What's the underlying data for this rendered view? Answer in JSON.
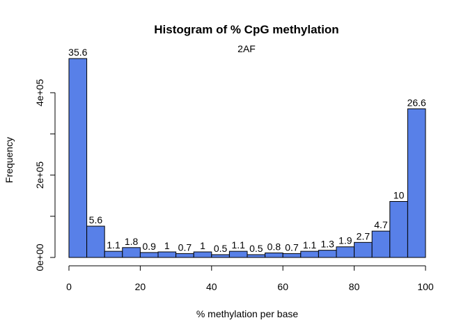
{
  "chart_data": {
    "type": "bar",
    "title": "Histogram of % CpG methylation",
    "subtitle": "2AF",
    "xlabel": "% methylation per base",
    "ylabel": "Frequency",
    "bar_color": "#5880e8",
    "xlim": [
      0,
      100
    ],
    "ylim": [
      0,
      490000
    ],
    "bin_width": 5,
    "bins": [
      {
        "x0": 0,
        "x1": 5,
        "value": 483000,
        "label": "35.6"
      },
      {
        "x0": 5,
        "x1": 10,
        "value": 76000,
        "label": "5.6"
      },
      {
        "x0": 10,
        "x1": 15,
        "value": 15000,
        "label": "1.1"
      },
      {
        "x0": 15,
        "x1": 20,
        "value": 24000,
        "label": "1.8"
      },
      {
        "x0": 20,
        "x1": 25,
        "value": 12000,
        "label": "0.9"
      },
      {
        "x0": 25,
        "x1": 30,
        "value": 13500,
        "label": "1"
      },
      {
        "x0": 30,
        "x1": 35,
        "value": 9500,
        "label": "0.7"
      },
      {
        "x0": 35,
        "x1": 40,
        "value": 13500,
        "label": "1"
      },
      {
        "x0": 40,
        "x1": 45,
        "value": 6800,
        "label": "0.5"
      },
      {
        "x0": 45,
        "x1": 50,
        "value": 15000,
        "label": "1.1"
      },
      {
        "x0": 50,
        "x1": 55,
        "value": 6800,
        "label": "0.5"
      },
      {
        "x0": 55,
        "x1": 60,
        "value": 11000,
        "label": "0.8"
      },
      {
        "x0": 60,
        "x1": 65,
        "value": 9500,
        "label": "0.7"
      },
      {
        "x0": 65,
        "x1": 70,
        "value": 15000,
        "label": "1.1"
      },
      {
        "x0": 70,
        "x1": 75,
        "value": 17500,
        "label": "1.3"
      },
      {
        "x0": 75,
        "x1": 80,
        "value": 25800,
        "label": "1.9"
      },
      {
        "x0": 80,
        "x1": 85,
        "value": 36600,
        "label": "2.7"
      },
      {
        "x0": 85,
        "x1": 90,
        "value": 64000,
        "label": "4.7"
      },
      {
        "x0": 90,
        "x1": 95,
        "value": 136000,
        "label": "10"
      },
      {
        "x0": 95,
        "x1": 100,
        "value": 361000,
        "label": "26.6"
      }
    ],
    "x_ticks": [
      {
        "value": 0,
        "label": "0"
      },
      {
        "value": 20,
        "label": "20"
      },
      {
        "value": 40,
        "label": "40"
      },
      {
        "value": 60,
        "label": "60"
      },
      {
        "value": 80,
        "label": "80"
      },
      {
        "value": 100,
        "label": "100"
      }
    ],
    "y_ticks": [
      {
        "value": 0,
        "label": "0e+00"
      },
      {
        "value": 100000,
        "label": ""
      },
      {
        "value": 200000,
        "label": "2e+05"
      },
      {
        "value": 300000,
        "label": ""
      },
      {
        "value": 400000,
        "label": "4e+05"
      }
    ],
    "grid": false,
    "legend": "none"
  }
}
